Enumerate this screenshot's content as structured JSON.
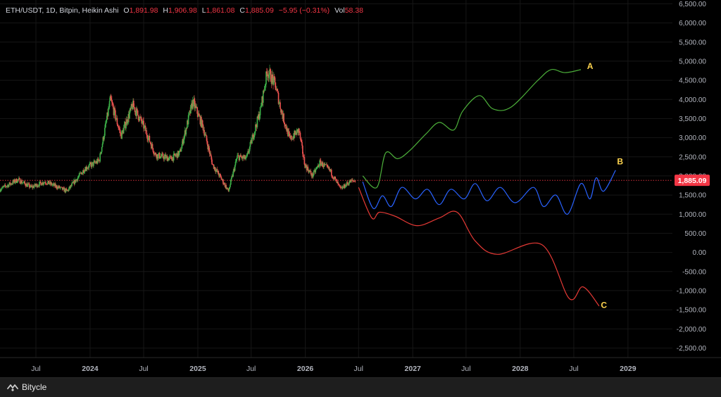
{
  "header": {
    "symbol": "ETH/USDT, 1D, Bitpin, Heikin Ashi",
    "open_label": "O",
    "open": "1,891.98",
    "high_label": "H",
    "high": "1,906.98",
    "low_label": "L",
    "low": "1,861.08",
    "close_label": "C",
    "close": "1,885.09",
    "change": "−5.95 (−0.31%)",
    "vol_label": "Vol",
    "vol": "58.38"
  },
  "brand": {
    "name": "Bitycle",
    "icon": "bitycle-logo-icon"
  },
  "colors": {
    "up": "#26a69a",
    "up_candle": "#3db349",
    "down": "#ef5350",
    "price_tag": "#f23645",
    "scenario_a": "#4caf3a",
    "scenario_b": "#2962ff",
    "scenario_c": "#e53935",
    "label": "#ffd54f",
    "axis_text": "#b2b5be",
    "grid": "#161616"
  },
  "chart_data": {
    "type": "candlestick",
    "ylim": [
      -2750,
      6600
    ],
    "y_ticks": [
      6500,
      6000,
      5500,
      5000,
      4500,
      4000,
      3500,
      3000,
      2500,
      2000,
      1500,
      1000,
      500,
      0,
      -500,
      -1000,
      -1500,
      -2000,
      -2500
    ],
    "y_tick_labels": [
      "6,500.00",
      "6,000.00",
      "5,500.00",
      "5,000.00",
      "4,500.00",
      "4,000.00",
      "3,500.00",
      "3,000.00",
      "2,500.00",
      "2,000.00",
      "1,500.00",
      "1,000.00",
      "500.00",
      "0.00",
      "-500.00",
      "-1,000.00",
      "-1,500.00",
      "-2,000.00",
      "-2,500.00"
    ],
    "x_range": [
      "2023-03-01",
      "2029-06-01"
    ],
    "x_ticks": [
      {
        "date": "2023-07-01",
        "label": "Jul"
      },
      {
        "date": "2024-01-01",
        "label": "2024"
      },
      {
        "date": "2024-07-01",
        "label": "Jul"
      },
      {
        "date": "2025-01-01",
        "label": "2025"
      },
      {
        "date": "2025-07-01",
        "label": "Jul"
      },
      {
        "date": "2026-01-01",
        "label": "2026"
      },
      {
        "date": "2026-07-01",
        "label": "Jul"
      },
      {
        "date": "2027-01-01",
        "label": "2027"
      },
      {
        "date": "2027-07-01",
        "label": "Jul"
      },
      {
        "date": "2028-01-01",
        "label": "2028"
      },
      {
        "date": "2028-07-01",
        "label": "Jul"
      },
      {
        "date": "2029-01-01",
        "label": "2029"
      }
    ],
    "current_price": 1885.09,
    "current_price_label": "1,885.09",
    "price_anchors": [
      [
        "2023-03-01",
        1650
      ],
      [
        "2023-05-01",
        1900
      ],
      [
        "2023-06-15",
        1700
      ],
      [
        "2023-08-01",
        1850
      ],
      [
        "2023-10-15",
        1600
      ],
      [
        "2023-12-15",
        2200
      ],
      [
        "2024-02-01",
        2400
      ],
      [
        "2024-03-10",
        4000
      ],
      [
        "2024-04-15",
        3050
      ],
      [
        "2024-05-25",
        3850
      ],
      [
        "2024-07-01",
        3300
      ],
      [
        "2024-08-10",
        2550
      ],
      [
        "2024-10-01",
        2450
      ],
      [
        "2024-11-01",
        2600
      ],
      [
        "2024-12-15",
        3950
      ],
      [
        "2025-01-20",
        3250
      ],
      [
        "2025-02-20",
        2300
      ],
      [
        "2025-03-20",
        1950
      ],
      [
        "2025-04-15",
        1600
      ],
      [
        "2025-05-15",
        2500
      ],
      [
        "2025-06-15",
        2450
      ],
      [
        "2025-08-01",
        3700
      ],
      [
        "2025-08-25",
        4750
      ],
      [
        "2025-09-20",
        4400
      ],
      [
        "2025-10-15",
        3600
      ],
      [
        "2025-11-10",
        2950
      ],
      [
        "2025-12-10",
        3200
      ],
      [
        "2025-12-30",
        2300
      ],
      [
        "2026-01-25",
        2000
      ],
      [
        "2026-02-20",
        2350
      ],
      [
        "2026-03-25",
        2150
      ],
      [
        "2026-05-01",
        1650
      ],
      [
        "2026-06-01",
        1850
      ],
      [
        "2026-06-20",
        1885
      ]
    ],
    "series": [
      {
        "name": "A",
        "points": [
          [
            "2026-07-15",
            2000
          ],
          [
            "2026-09-01",
            1700
          ],
          [
            "2026-10-01",
            2600
          ],
          [
            "2026-11-10",
            2450
          ],
          [
            "2026-12-20",
            2650
          ],
          [
            "2027-02-15",
            3100
          ],
          [
            "2027-04-01",
            3400
          ],
          [
            "2027-05-20",
            3200
          ],
          [
            "2027-06-20",
            3700
          ],
          [
            "2027-08-15",
            4100
          ],
          [
            "2027-10-01",
            3750
          ],
          [
            "2027-12-01",
            3800
          ],
          [
            "2028-03-01",
            4500
          ],
          [
            "2028-04-15",
            4780
          ],
          [
            "2028-06-01",
            4700
          ],
          [
            "2028-07-25",
            4780
          ]
        ]
      },
      {
        "name": "B",
        "points": [
          [
            "2026-07-15",
            1850
          ],
          [
            "2026-08-20",
            1150
          ],
          [
            "2026-09-20",
            1480
          ],
          [
            "2026-10-20",
            1200
          ],
          [
            "2026-11-25",
            1700
          ],
          [
            "2027-01-10",
            1400
          ],
          [
            "2027-02-20",
            1650
          ],
          [
            "2027-04-01",
            1250
          ],
          [
            "2027-05-10",
            1650
          ],
          [
            "2027-06-25",
            1400
          ],
          [
            "2027-08-01",
            1800
          ],
          [
            "2027-09-10",
            1350
          ],
          [
            "2027-10-25",
            1700
          ],
          [
            "2027-12-15",
            1300
          ],
          [
            "2028-02-15",
            1700
          ],
          [
            "2028-03-20",
            1200
          ],
          [
            "2028-05-01",
            1500
          ],
          [
            "2028-06-10",
            1000
          ],
          [
            "2028-07-25",
            1800
          ],
          [
            "2028-08-25",
            1400
          ],
          [
            "2028-09-15",
            1950
          ],
          [
            "2028-10-10",
            1600
          ],
          [
            "2028-11-20",
            2150
          ]
        ]
      },
      {
        "name": "C",
        "points": [
          [
            "2026-07-01",
            1700
          ],
          [
            "2026-08-15",
            900
          ],
          [
            "2026-09-10",
            1050
          ],
          [
            "2026-11-01",
            950
          ],
          [
            "2027-01-15",
            700
          ],
          [
            "2027-04-01",
            900
          ],
          [
            "2027-06-01",
            1050
          ],
          [
            "2027-08-01",
            300
          ],
          [
            "2027-10-15",
            -50
          ],
          [
            "2028-03-15",
            200
          ],
          [
            "2028-06-15",
            -1200
          ],
          [
            "2028-08-01",
            -900
          ],
          [
            "2028-09-25",
            -1400
          ]
        ]
      }
    ],
    "annotations": [
      {
        "text": "A",
        "date": "2028-08-15",
        "value": 4800
      },
      {
        "text": "B",
        "date": "2028-11-25",
        "value": 2300
      },
      {
        "text": "C",
        "date": "2028-10-01",
        "value": -1450
      }
    ]
  }
}
